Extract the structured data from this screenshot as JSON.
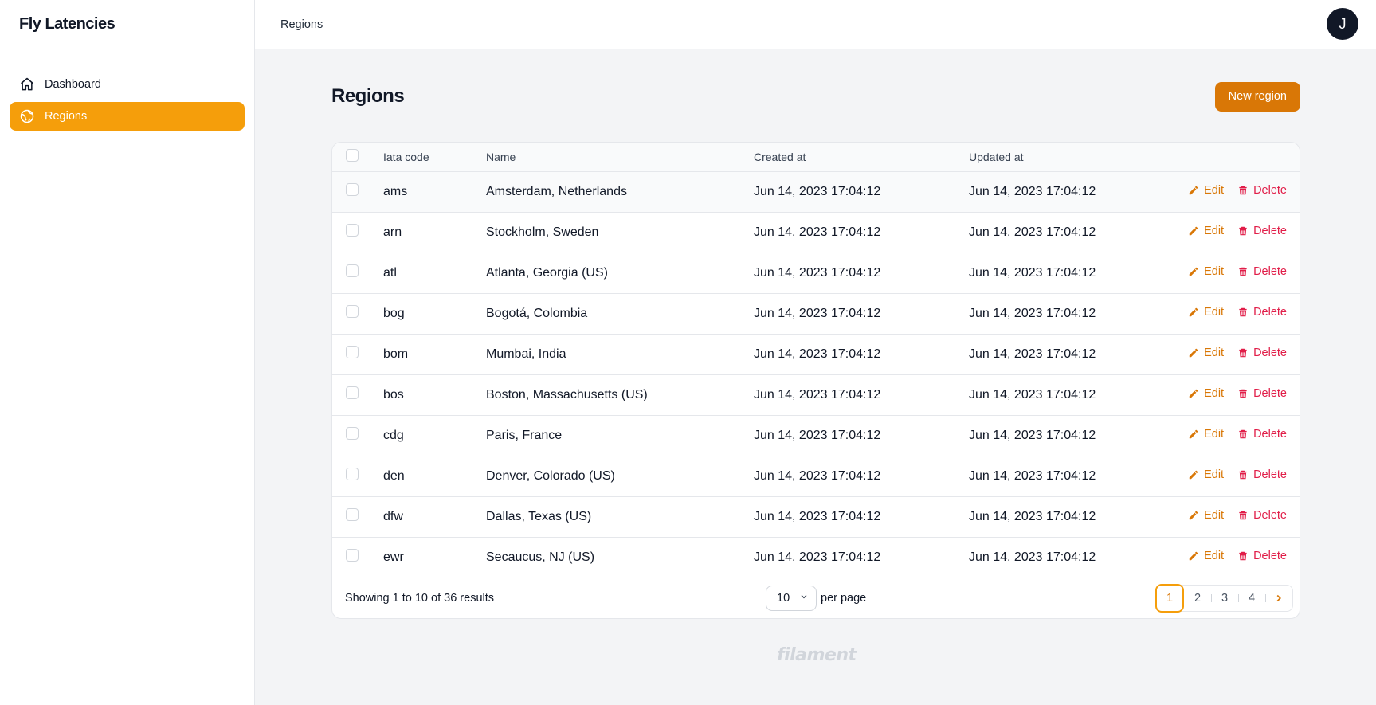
{
  "app": {
    "title": "Fly Latencies"
  },
  "sidebar": {
    "items": [
      {
        "label": "Dashboard",
        "icon": "home-icon",
        "active": false
      },
      {
        "label": "Regions",
        "icon": "globe-icon",
        "active": true
      }
    ]
  },
  "topbar": {
    "breadcrumb": "Regions",
    "avatar_initial": "J"
  },
  "page": {
    "title": "Regions",
    "new_button": "New region"
  },
  "table": {
    "columns": [
      "Iata code",
      "Name",
      "Created at",
      "Updated at"
    ],
    "rows": [
      {
        "code": "ams",
        "name": "Amsterdam, Netherlands",
        "created": "Jun 14, 2023 17:04:12",
        "updated": "Jun 14, 2023 17:04:12"
      },
      {
        "code": "arn",
        "name": "Stockholm, Sweden",
        "created": "Jun 14, 2023 17:04:12",
        "updated": "Jun 14, 2023 17:04:12"
      },
      {
        "code": "atl",
        "name": "Atlanta, Georgia (US)",
        "created": "Jun 14, 2023 17:04:12",
        "updated": "Jun 14, 2023 17:04:12"
      },
      {
        "code": "bog",
        "name": "Bogotá, Colombia",
        "created": "Jun 14, 2023 17:04:12",
        "updated": "Jun 14, 2023 17:04:12"
      },
      {
        "code": "bom",
        "name": "Mumbai, India",
        "created": "Jun 14, 2023 17:04:12",
        "updated": "Jun 14, 2023 17:04:12"
      },
      {
        "code": "bos",
        "name": "Boston, Massachusetts (US)",
        "created": "Jun 14, 2023 17:04:12",
        "updated": "Jun 14, 2023 17:04:12"
      },
      {
        "code": "cdg",
        "name": "Paris, France",
        "created": "Jun 14, 2023 17:04:12",
        "updated": "Jun 14, 2023 17:04:12"
      },
      {
        "code": "den",
        "name": "Denver, Colorado (US)",
        "created": "Jun 14, 2023 17:04:12",
        "updated": "Jun 14, 2023 17:04:12"
      },
      {
        "code": "dfw",
        "name": "Dallas, Texas (US)",
        "created": "Jun 14, 2023 17:04:12",
        "updated": "Jun 14, 2023 17:04:12"
      },
      {
        "code": "ewr",
        "name": "Secaucus, NJ (US)",
        "created": "Jun 14, 2023 17:04:12",
        "updated": "Jun 14, 2023 17:04:12"
      }
    ],
    "edit_label": "Edit",
    "delete_label": "Delete"
  },
  "pagination": {
    "summary": "Showing 1 to 10 of 36 results",
    "per_page_value": "10",
    "per_page_label": "per page",
    "pages": [
      "1",
      "2",
      "3",
      "4"
    ],
    "current_page": "1"
  },
  "footer": {
    "brand": "filament"
  },
  "colors": {
    "primary": "#f59e0b",
    "primary_dark": "#d97706",
    "danger": "#e11d48"
  }
}
